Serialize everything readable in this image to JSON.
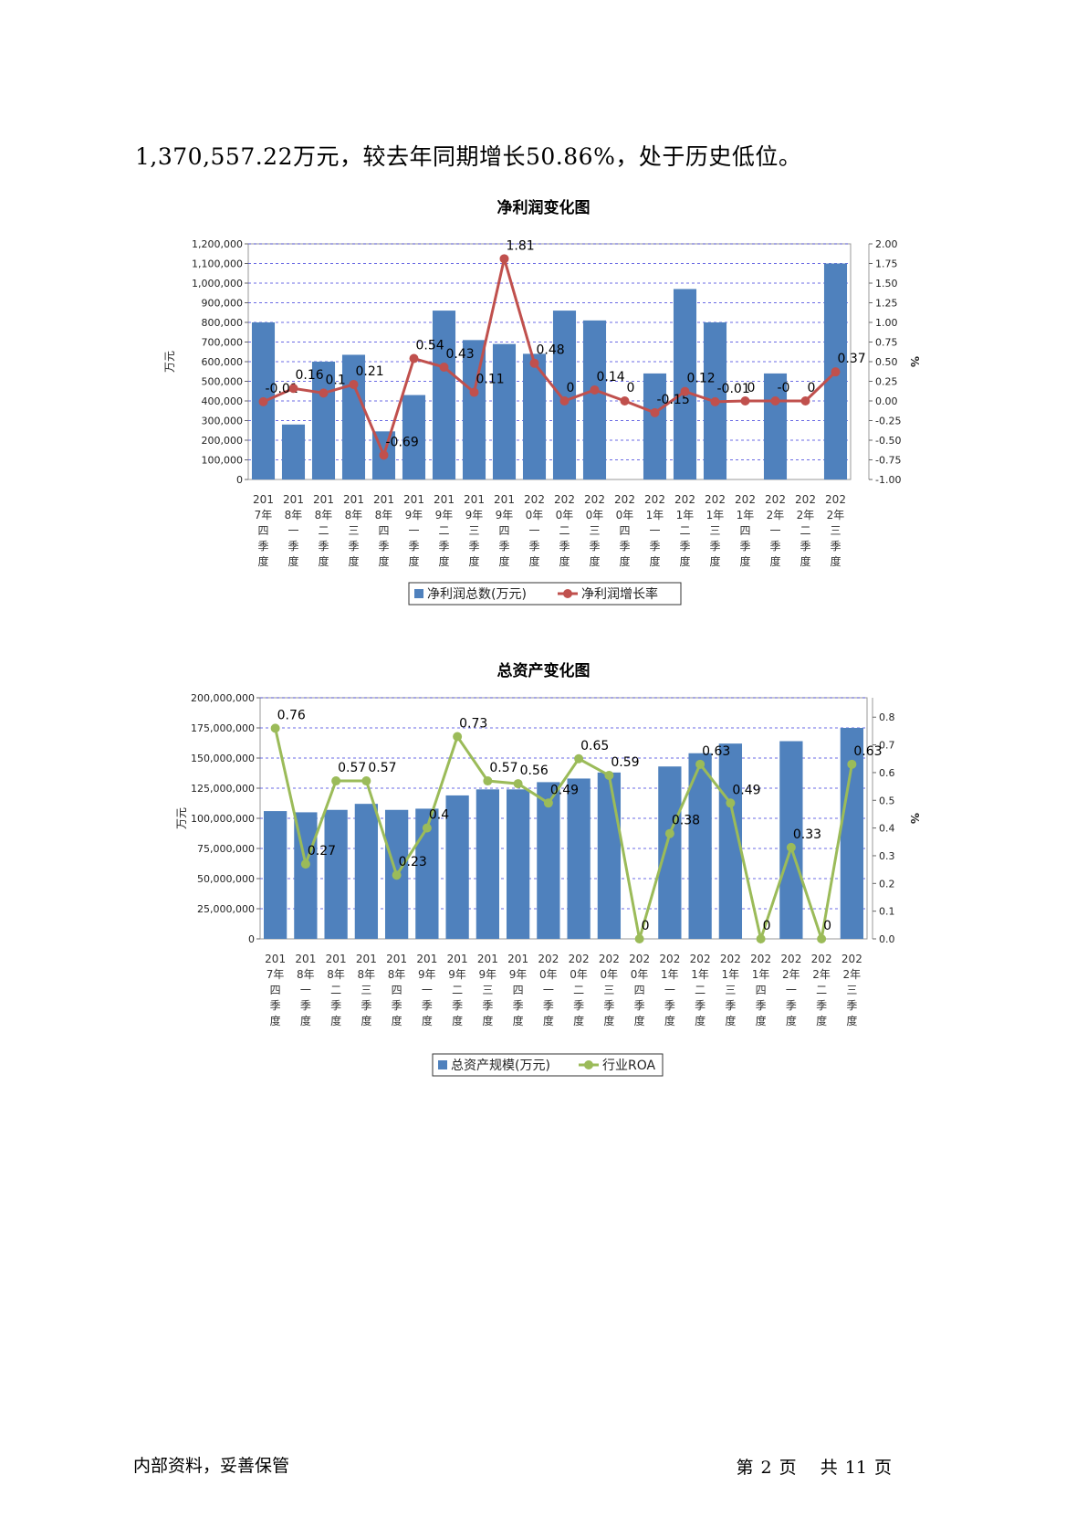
{
  "intro_text": "1,370,557.22万元，较去年同期增长50.86%，处于历史低位。",
  "colors": {
    "bar": "#4f81bd",
    "line1": "#c0504d",
    "line2": "#9bbb59",
    "grid": "#3b3bdb"
  },
  "footer": {
    "left": "内部资料，妥善保管",
    "page_prefix": "第",
    "page_num": "2",
    "page_suffix": "页",
    "total_prefix": "共",
    "total_num": "11",
    "total_suffix": "页"
  },
  "chart_data": [
    {
      "type": "bar",
      "title": "净利润变化图",
      "ylabel": "万元",
      "y2label": "%",
      "categories": [
        "2017年四季度",
        "2018年一季度",
        "2018年二季度",
        "2018年三季度",
        "2018年四季度",
        "2019年一季度",
        "2019年二季度",
        "2019年三季度",
        "2019年四季度",
        "2020年一季度",
        "2020年二季度",
        "2020年三季度",
        "2020年四季度",
        "2021年一季度",
        "2021年二季度",
        "2021年三季度",
        "2021年四季度",
        "2022年一季度",
        "2022年二季度",
        "2022年三季度"
      ],
      "category_lines": [
        [
          "201",
          "7年",
          "四",
          "季",
          "度"
        ],
        [
          "201",
          "8年",
          "一",
          "季",
          "度"
        ],
        [
          "201",
          "8年",
          "二",
          "季",
          "度"
        ],
        [
          "201",
          "8年",
          "三",
          "季",
          "度"
        ],
        [
          "201",
          "8年",
          "四",
          "季",
          "度"
        ],
        [
          "201",
          "9年",
          "一",
          "季",
          "度"
        ],
        [
          "201",
          "9年",
          "二",
          "季",
          "度"
        ],
        [
          "201",
          "9年",
          "三",
          "季",
          "度"
        ],
        [
          "201",
          "9年",
          "四",
          "季",
          "度"
        ],
        [
          "202",
          "0年",
          "一",
          "季",
          "度"
        ],
        [
          "202",
          "0年",
          "二",
          "季",
          "度"
        ],
        [
          "202",
          "0年",
          "三",
          "季",
          "度"
        ],
        [
          "202",
          "0年",
          "四",
          "季",
          "度"
        ],
        [
          "202",
          "1年",
          "一",
          "季",
          "度"
        ],
        [
          "202",
          "1年",
          "二",
          "季",
          "度"
        ],
        [
          "202",
          "1年",
          "三",
          "季",
          "度"
        ],
        [
          "202",
          "1年",
          "四",
          "季",
          "度"
        ],
        [
          "202",
          "2年",
          "一",
          "季",
          "度"
        ],
        [
          "202",
          "2年",
          "二",
          "季",
          "度"
        ],
        [
          "202",
          "2年",
          "三",
          "季",
          "度"
        ]
      ],
      "series": [
        {
          "name": "净利润总数(万元)",
          "kind": "bar",
          "axis": "left",
          "values": [
            800000,
            280000,
            600000,
            635000,
            245000,
            430000,
            860000,
            710000,
            690000,
            640000,
            860000,
            810000,
            0,
            540000,
            970000,
            800000,
            0,
            540000,
            0,
            1100000
          ]
        },
        {
          "name": "净利润增长率",
          "kind": "line",
          "axis": "right",
          "values": [
            -0.01,
            0.16,
            0.1,
            0.21,
            -0.69,
            0.54,
            0.43,
            0.11,
            1.81,
            0.48,
            0,
            0.14,
            0,
            -0.15,
            0.12,
            -0.01,
            0,
            0,
            0,
            0.37
          ],
          "labels": [
            "-0.01",
            "0.16",
            "0.1",
            "0.21",
            "-0.69",
            "0.54",
            "0.43",
            "0.11",
            "1.81",
            "0.48",
            "0",
            "0.14",
            "0",
            "-0.15",
            "0.12",
            "-0.01",
            "0",
            "-0",
            "0",
            "0.37"
          ]
        }
      ],
      "ylim": [
        0,
        1200000
      ],
      "yticks": [
        "0",
        "100,000",
        "200,000",
        "300,000",
        "400,000",
        "500,000",
        "600,000",
        "700,000",
        "800,000",
        "900,000",
        "1,000,000",
        "1,100,000",
        "1,200,000"
      ],
      "y2lim": [
        -1.0,
        2.0
      ],
      "y2ticks": [
        "-1.00",
        "-0.75",
        "-0.50",
        "-0.25",
        "0.00",
        "0.25",
        "0.50",
        "0.75",
        "1.00",
        "1.25",
        "1.50",
        "1.75",
        "2.00"
      ],
      "legend": "bottom",
      "grid": true
    },
    {
      "type": "bar",
      "title": "总资产变化图",
      "ylabel": "万元",
      "y2label": "%",
      "categories": [
        "2017年四季度",
        "2018年一季度",
        "2018年二季度",
        "2018年三季度",
        "2018年四季度",
        "2019年一季度",
        "2019年二季度",
        "2019年三季度",
        "2019年四季度",
        "2020年一季度",
        "2020年二季度",
        "2020年三季度",
        "2020年四季度",
        "2021年一季度",
        "2021年二季度",
        "2021年三季度",
        "2021年四季度",
        "2022年一季度",
        "2022年二季度",
        "2022年三季度"
      ],
      "category_lines": [
        [
          "201",
          "7年",
          "四",
          "季",
          "度"
        ],
        [
          "201",
          "8年",
          "一",
          "季",
          "度"
        ],
        [
          "201",
          "8年",
          "二",
          "季",
          "度"
        ],
        [
          "201",
          "8年",
          "三",
          "季",
          "度"
        ],
        [
          "201",
          "8年",
          "四",
          "季",
          "度"
        ],
        [
          "201",
          "9年",
          "一",
          "季",
          "度"
        ],
        [
          "201",
          "9年",
          "二",
          "季",
          "度"
        ],
        [
          "201",
          "9年",
          "三",
          "季",
          "度"
        ],
        [
          "201",
          "9年",
          "四",
          "季",
          "度"
        ],
        [
          "202",
          "0年",
          "一",
          "季",
          "度"
        ],
        [
          "202",
          "0年",
          "二",
          "季",
          "度"
        ],
        [
          "202",
          "0年",
          "三",
          "季",
          "度"
        ],
        [
          "202",
          "0年",
          "四",
          "季",
          "度"
        ],
        [
          "202",
          "1年",
          "一",
          "季",
          "度"
        ],
        [
          "202",
          "1年",
          "二",
          "季",
          "度"
        ],
        [
          "202",
          "1年",
          "三",
          "季",
          "度"
        ],
        [
          "202",
          "1年",
          "四",
          "季",
          "度"
        ],
        [
          "202",
          "2年",
          "一",
          "季",
          "度"
        ],
        [
          "202",
          "2年",
          "二",
          "季",
          "度"
        ],
        [
          "202",
          "2年",
          "三",
          "季",
          "度"
        ]
      ],
      "series": [
        {
          "name": "总资产规模(万元)",
          "kind": "bar",
          "axis": "left",
          "values": [
            106000000,
            105000000,
            107000000,
            112000000,
            107000000,
            108000000,
            119000000,
            124000000,
            124000000,
            130000000,
            133000000,
            138000000,
            0,
            143000000,
            154000000,
            162000000,
            0,
            164000000,
            0,
            175000000
          ]
        },
        {
          "name": "行业ROA",
          "kind": "line",
          "axis": "right",
          "values": [
            0.76,
            0.27,
            0.57,
            0.57,
            0.23,
            0.4,
            0.73,
            0.57,
            0.56,
            0.49,
            0.65,
            0.59,
            0,
            0.38,
            0.63,
            0.49,
            0,
            0.33,
            0,
            0.63
          ],
          "labels": [
            "0.76",
            "0.27",
            "0.57",
            "0.57",
            "0.23",
            "0.4",
            "0.73",
            "0.57",
            "0.56",
            "0.49",
            "0.65",
            "0.59",
            "0",
            "0.38",
            "0.63",
            "0.49",
            "0",
            "0.33",
            "0",
            "0.63"
          ]
        }
      ],
      "ylim": [
        0,
        200000000
      ],
      "yticks": [
        "0",
        "25,000,000",
        "50,000,000",
        "75,000,000",
        "100,000,000",
        "125,000,000",
        "150,000,000",
        "175,000,000",
        "200,000,000"
      ],
      "y2lim": [
        0,
        0.87
      ],
      "y2ticks": [
        "0.0",
        "0.1",
        "0.2",
        "0.3",
        "0.4",
        "0.5",
        "0.6",
        "0.7",
        "0.8"
      ],
      "legend": "bottom",
      "grid": true
    }
  ]
}
